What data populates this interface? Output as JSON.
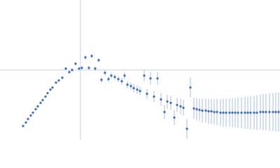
{
  "chart_data": {
    "type": "scatter",
    "xlim": [
      0,
      400
    ],
    "ylim": [
      0,
      200
    ],
    "reference_x": 115,
    "reference_y": 100,
    "reference_color": "#c5d3e6",
    "series": [
      {
        "color": "#3a6bb5",
        "error_color": "#a9c1e2",
        "x": [
          33,
          37,
          40,
          44,
          47,
          51,
          54,
          58,
          61,
          65,
          68,
          72,
          75,
          80,
          84,
          89,
          94,
          99,
          103,
          108,
          113,
          117,
          122,
          127,
          131,
          136,
          141,
          145,
          150,
          155,
          159,
          164,
          169,
          174,
          178,
          182,
          187,
          191,
          196,
          200,
          206,
          210,
          215,
          220,
          225,
          230,
          235,
          239,
          244,
          249,
          253,
          258,
          262,
          267,
          272,
          277,
          281,
          285,
          289,
          294,
          298,
          302,
          306,
          310,
          315,
          319,
          323,
          328,
          332,
          336,
          340,
          345,
          350,
          354,
          358,
          363,
          367,
          372,
          376,
          380,
          385,
          390,
          394,
          398
        ],
        "values": [
          20,
          25,
          30,
          35,
          39,
          44,
          48,
          53,
          57,
          62,
          67,
          72,
          75,
          82,
          85,
          89,
          102,
          97,
          100,
          109,
          102,
          103,
          118,
          103,
          120,
          102,
          114,
          86,
          96,
          87,
          92,
          90,
          87,
          84,
          92,
          79,
          77,
          74,
          72,
          70,
          92,
          66,
          88,
          62,
          88,
          58,
          40,
          55,
          53,
          32,
          50,
          48,
          46,
          16,
          75,
          45,
          44,
          43,
          42,
          42,
          41,
          41,
          40,
          40,
          39,
          39,
          39,
          39,
          39,
          39,
          39,
          39,
          39,
          39,
          39,
          39,
          39,
          40,
          40,
          40,
          40,
          40,
          40,
          40
        ],
        "errors": [
          1,
          1,
          1,
          1,
          1,
          1,
          1,
          1,
          1,
          1,
          1,
          1,
          1,
          1,
          1,
          2,
          2,
          2,
          2,
          2,
          2,
          2,
          3,
          3,
          3,
          3,
          3,
          4,
          4,
          4,
          4,
          4,
          4,
          5,
          5,
          5,
          5,
          6,
          6,
          6,
          8,
          7,
          9,
          8,
          9,
          9,
          10,
          10,
          10,
          11,
          10,
          11,
          11,
          14,
          14,
          15,
          16,
          16,
          17,
          17,
          18,
          18,
          18,
          19,
          19,
          20,
          20,
          20,
          21,
          21,
          22,
          22,
          23,
          23,
          24,
          24,
          25,
          25,
          26,
          26,
          27,
          27,
          28,
          28
        ]
      }
    ]
  }
}
